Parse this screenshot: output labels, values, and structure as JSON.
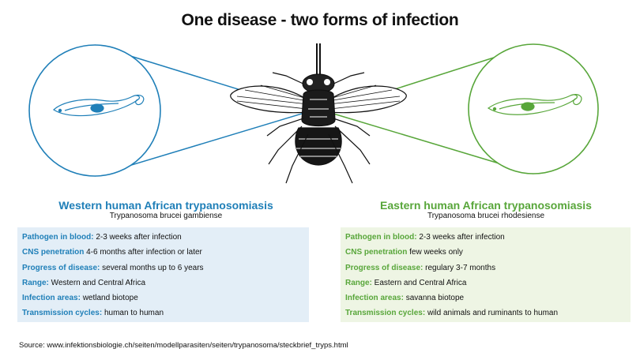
{
  "title": "One disease - two forms of infection",
  "colors": {
    "western": "#1f7fb8",
    "eastern": "#58a63a",
    "western_panel_bg": "#e3eef7",
    "eastern_panel_bg": "#eef5e4"
  },
  "western": {
    "title": "Western human African trypanosomiasis",
    "species": "Trypanosoma brucei gambiense",
    "rows": [
      {
        "label": "Pathogen in blood:",
        "value": " 2-3 weeks after infection"
      },
      {
        "label": "CNS penetration",
        "value": " 4-6 months after infection or later"
      },
      {
        "label": "Progress of disease:",
        "value": " several months up to 6 years"
      },
      {
        "label": "Range:",
        "value": " Western and Central Africa"
      },
      {
        "label": "Infection areas:",
        "value": " wetland biotope"
      },
      {
        "label": "Transmission cycles:",
        "value": " human to human"
      }
    ]
  },
  "eastern": {
    "title": "Eastern human African trypanosomiasis",
    "species": "Trypanosoma brucei rhodesiense",
    "rows": [
      {
        "label": "Pathogen in blood:",
        "value": " 2-3 weeks after infection"
      },
      {
        "label": "CNS penetration",
        "value": " few weeks only"
      },
      {
        "label": "Progress of disease:",
        "value": " regulary 3-7 months"
      },
      {
        "label": "Range:",
        "value": " Eastern and Central Africa"
      },
      {
        "label": "Infection areas:",
        "value": " savanna biotope"
      },
      {
        "label": "Transmission cycles:",
        "value": " wild animals and ruminants to human"
      }
    ]
  },
  "source": "Source: www.infektionsbiologie.ch/seiten/modellparasiten/seiten/trypanosoma/steckbrief_tryps.html",
  "icons": [
    "trypanosome-icon",
    "tsetse-fly-icon"
  ]
}
